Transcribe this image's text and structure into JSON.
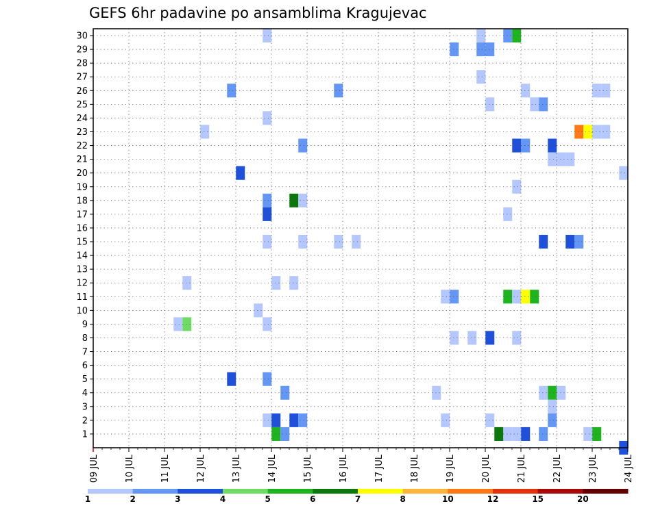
{
  "chart_data": {
    "type": "heatmap",
    "title": "GEFS 6hr padavine po ansamblima Kragujevac",
    "y_members": [
      1,
      2,
      3,
      4,
      5,
      6,
      7,
      8,
      9,
      10,
      11,
      12,
      13,
      14,
      15,
      16,
      17,
      18,
      19,
      20,
      21,
      22,
      23,
      24,
      25,
      26,
      27,
      28,
      29,
      30
    ],
    "y_tick_labels": [
      "1",
      "2",
      "3",
      "4",
      "5",
      "6",
      "7",
      "8",
      "9",
      "10",
      "11",
      "12",
      "13",
      "14",
      "15",
      "16",
      "17",
      "18",
      "19",
      "20",
      "21",
      "22",
      "23",
      "24",
      "25",
      "26",
      "27",
      "28",
      "29",
      "30"
    ],
    "x_tick_labels": [
      "09 JUL",
      "10 JUL",
      "11 JUL",
      "12 JUL",
      "13 JUL",
      "14 JUL",
      "15 JUL",
      "16 JUL",
      "17 JUL",
      "18 JUL",
      "19 JUL",
      "20 JUL",
      "21 JUL",
      "22 JUL",
      "23 JUL",
      "24 JUL"
    ],
    "x_unit": "days from 09 JUL 00Z; 6-hour steps",
    "xlim": [
      0,
      15
    ],
    "ylim": [
      0,
      30.5
    ],
    "grid": true,
    "colorbar": {
      "colors": [
        "#b4c8ff",
        "#6496f5",
        "#1e50dc",
        "#6edc64",
        "#1eb41e",
        "#0a780a",
        "#ffff00",
        "#ffb43c",
        "#ff7814",
        "#e6320a",
        "#aa0a0a",
        "#640000"
      ],
      "labels": [
        "1",
        "2",
        "3",
        "4",
        "5",
        "6",
        "7",
        "8",
        "10",
        "12",
        "15",
        "20"
      ]
    },
    "cells": [
      {
        "m": 30,
        "t": 4.88,
        "c": 1
      },
      {
        "m": 30,
        "t": 10.88,
        "c": 1
      },
      {
        "m": 30,
        "t": 11.63,
        "c": 2
      },
      {
        "m": 30,
        "t": 11.88,
        "c": 5
      },
      {
        "m": 29,
        "t": 10.13,
        "c": 2
      },
      {
        "m": 29,
        "t": 10.88,
        "c": 2
      },
      {
        "m": 29,
        "t": 11.13,
        "c": 2
      },
      {
        "m": 27,
        "t": 10.88,
        "c": 1
      },
      {
        "m": 26,
        "t": 3.88,
        "c": 2
      },
      {
        "m": 26,
        "t": 6.88,
        "c": 2
      },
      {
        "m": 26,
        "t": 12.13,
        "c": 1
      },
      {
        "m": 26,
        "t": 14.13,
        "c": 1
      },
      {
        "m": 26,
        "t": 14.38,
        "c": 1
      },
      {
        "m": 25,
        "t": 11.13,
        "c": 1
      },
      {
        "m": 25,
        "t": 12.38,
        "c": 1
      },
      {
        "m": 25,
        "t": 12.63,
        "c": 2
      },
      {
        "m": 24,
        "t": 4.88,
        "c": 1
      },
      {
        "m": 23,
        "t": 3.13,
        "c": 1
      },
      {
        "m": 23,
        "t": 13.63,
        "c": 9
      },
      {
        "m": 23,
        "t": 13.88,
        "c": 7
      },
      {
        "m": 23,
        "t": 14.13,
        "c": 1
      },
      {
        "m": 23,
        "t": 14.38,
        "c": 1
      },
      {
        "m": 22,
        "t": 5.88,
        "c": 2
      },
      {
        "m": 22,
        "t": 11.88,
        "c": 3
      },
      {
        "m": 22,
        "t": 12.13,
        "c": 2
      },
      {
        "m": 22,
        "t": 12.88,
        "c": 3
      },
      {
        "m": 21,
        "t": 12.88,
        "c": 1
      },
      {
        "m": 21,
        "t": 13.13,
        "c": 1
      },
      {
        "m": 21,
        "t": 13.38,
        "c": 1
      },
      {
        "m": 20,
        "t": 4.13,
        "c": 3
      },
      {
        "m": 20,
        "t": 14.88,
        "c": 1
      },
      {
        "m": 19,
        "t": 11.88,
        "c": 1
      },
      {
        "m": 18,
        "t": 4.88,
        "c": 2
      },
      {
        "m": 18,
        "t": 5.63,
        "c": 6
      },
      {
        "m": 18,
        "t": 5.88,
        "c": 1
      },
      {
        "m": 17,
        "t": 4.88,
        "c": 3
      },
      {
        "m": 17,
        "t": 11.63,
        "c": 1
      },
      {
        "m": 15,
        "t": 4.88,
        "c": 1
      },
      {
        "m": 15,
        "t": 5.88,
        "c": 1
      },
      {
        "m": 15,
        "t": 6.88,
        "c": 1
      },
      {
        "m": 15,
        "t": 7.38,
        "c": 1
      },
      {
        "m": 15,
        "t": 12.63,
        "c": 3
      },
      {
        "m": 15,
        "t": 13.38,
        "c": 3
      },
      {
        "m": 15,
        "t": 13.63,
        "c": 2
      },
      {
        "m": 12,
        "t": 2.63,
        "c": 1
      },
      {
        "m": 12,
        "t": 5.13,
        "c": 1
      },
      {
        "m": 12,
        "t": 5.63,
        "c": 1
      },
      {
        "m": 11,
        "t": 9.88,
        "c": 1
      },
      {
        "m": 11,
        "t": 10.13,
        "c": 2
      },
      {
        "m": 11,
        "t": 11.63,
        "c": 5
      },
      {
        "m": 11,
        "t": 11.88,
        "c": 1
      },
      {
        "m": 11,
        "t": 12.13,
        "c": 7
      },
      {
        "m": 11,
        "t": 12.38,
        "c": 5
      },
      {
        "m": 10,
        "t": 4.63,
        "c": 1
      },
      {
        "m": 9,
        "t": 2.38,
        "c": 1
      },
      {
        "m": 9,
        "t": 2.63,
        "c": 4
      },
      {
        "m": 9,
        "t": 4.88,
        "c": 1
      },
      {
        "m": 8,
        "t": 10.13,
        "c": 1
      },
      {
        "m": 8,
        "t": 10.63,
        "c": 1
      },
      {
        "m": 8,
        "t": 11.13,
        "c": 3
      },
      {
        "m": 8,
        "t": 11.88,
        "c": 1
      },
      {
        "m": 5,
        "t": 3.88,
        "c": 3
      },
      {
        "m": 5,
        "t": 4.88,
        "c": 2
      },
      {
        "m": 4,
        "t": 5.38,
        "c": 2
      },
      {
        "m": 4,
        "t": 9.63,
        "c": 1
      },
      {
        "m": 4,
        "t": 12.63,
        "c": 1
      },
      {
        "m": 4,
        "t": 12.88,
        "c": 5
      },
      {
        "m": 4,
        "t": 13.13,
        "c": 1
      },
      {
        "m": 3,
        "t": 12.88,
        "c": 1
      },
      {
        "m": 2,
        "t": 4.88,
        "c": 1
      },
      {
        "m": 2,
        "t": 5.13,
        "c": 3
      },
      {
        "m": 2,
        "t": 5.63,
        "c": 3
      },
      {
        "m": 2,
        "t": 5.88,
        "c": 2
      },
      {
        "m": 2,
        "t": 9.88,
        "c": 1
      },
      {
        "m": 2,
        "t": 11.13,
        "c": 1
      },
      {
        "m": 2,
        "t": 12.88,
        "c": 2
      },
      {
        "m": 1,
        "t": 5.13,
        "c": 5
      },
      {
        "m": 1,
        "t": 5.38,
        "c": 2
      },
      {
        "m": 1,
        "t": 11.38,
        "c": 6
      },
      {
        "m": 1,
        "t": 11.63,
        "c": 1
      },
      {
        "m": 1,
        "t": 11.88,
        "c": 1
      },
      {
        "m": 1,
        "t": 12.13,
        "c": 3
      },
      {
        "m": 1,
        "t": 12.63,
        "c": 2
      },
      {
        "m": 1,
        "t": 13.88,
        "c": 1
      },
      {
        "m": 1,
        "t": 14.13,
        "c": 5
      },
      {
        "m": 0,
        "t": 14.88,
        "c": 3
      }
    ]
  }
}
